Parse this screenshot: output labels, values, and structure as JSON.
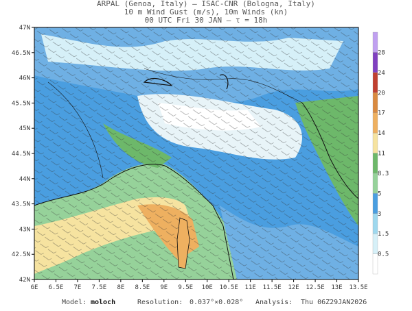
{
  "header": {
    "lines": [
      "ARPAL (Genoa, Italy)  –  ISAC-CNR (Bologna, Italy)",
      "10 m Wind Gust (m/s), 10m Winds (kn)",
      "00 UTC Fri 30 JAN  –  τ = 18h"
    ]
  },
  "map": {
    "lat_labels": [
      "42N",
      "42.5N",
      "43N",
      "43.5N",
      "44N",
      "44.5N",
      "45N",
      "45.5N",
      "46N",
      "46.5N",
      "47N"
    ],
    "lon_labels": [
      "6E",
      "6.5E",
      "7E",
      "7.5E",
      "8E",
      "8.5E",
      "9E",
      "9.5E",
      "10E",
      "10.5E",
      "11E",
      "11.5E",
      "12E",
      "12.5E",
      "13E",
      "13.5E"
    ]
  },
  "colorbar": {
    "labels": [
      "0.5",
      "1.5",
      "3",
      "5",
      "8.3",
      "11",
      "14",
      "17",
      "20",
      "24",
      "28"
    ],
    "colors": [
      "#ffffff",
      "#d6f0f8",
      "#9ed8ee",
      "#4a9ee0",
      "#96d29a",
      "#6db86a",
      "#f6e3a0",
      "#eeb060",
      "#d98a40",
      "#c04030",
      "#8040c0",
      "#c0a0f0"
    ]
  },
  "footer": {
    "model_label": "Model:",
    "model": "moloch",
    "resolution_label": "Resolution:",
    "resolution": "0.037°×0.028°",
    "analysis_label": "Analysis:",
    "analysis": "Thu 06Z29JAN2026"
  }
}
